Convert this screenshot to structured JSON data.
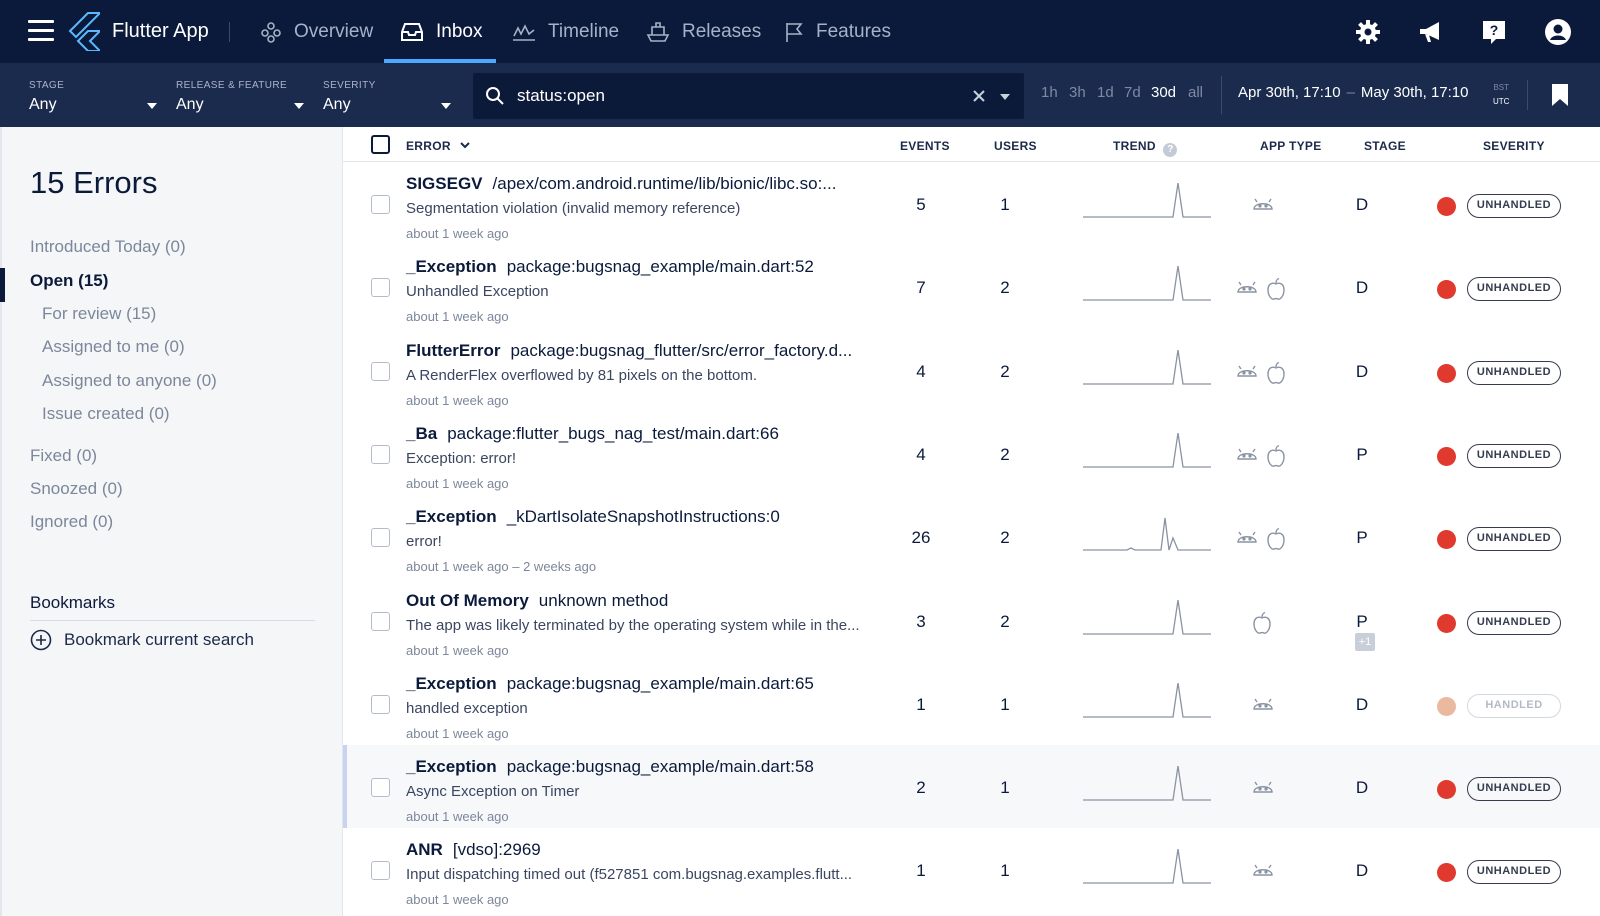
{
  "app": {
    "name": "Flutter App"
  },
  "nav": {
    "tabs": [
      {
        "label": "Overview",
        "icon": "overview-icon"
      },
      {
        "label": "Inbox",
        "icon": "inbox-icon"
      },
      {
        "label": "Timeline",
        "icon": "timeline-icon"
      },
      {
        "label": "Releases",
        "icon": "releases-icon"
      },
      {
        "label": "Features",
        "icon": "flag-icon"
      }
    ],
    "active": "Inbox"
  },
  "filters": {
    "stage": {
      "label": "STAGE",
      "value": "Any"
    },
    "release": {
      "label": "RELEASE & FEATURE",
      "value": "Any"
    },
    "severity": {
      "label": "SEVERITY",
      "value": "Any"
    },
    "search": {
      "value": "status:open"
    },
    "ranges": [
      "1h",
      "3h",
      "1d",
      "7d",
      "30d",
      "all"
    ],
    "active_range": "30d",
    "date_from": "Apr 30th, 17:10",
    "date_sep": "–",
    "date_to": "May 30th, 17:10",
    "tz_top": "BST",
    "tz_bottom": "UTC"
  },
  "sidebar": {
    "title": "15 Errors",
    "items": [
      {
        "label": "Introduced Today (0)"
      },
      {
        "label": "Open (15)"
      },
      {
        "label": "For review (15)"
      },
      {
        "label": "Assigned to me (0)"
      },
      {
        "label": "Assigned to anyone (0)"
      },
      {
        "label": "Issue created (0)"
      },
      {
        "label": "Fixed (0)"
      },
      {
        "label": "Snoozed (0)"
      },
      {
        "label": "Ignored (0)"
      }
    ],
    "bookmarks_title": "Bookmarks",
    "bookmark_button": "Bookmark current search"
  },
  "table": {
    "headers": {
      "error": "ERROR",
      "events": "EVENTS",
      "users": "USERS",
      "trend": "TREND",
      "app_type": "APP TYPE",
      "stage": "STAGE",
      "severity": "SEVERITY"
    },
    "rows": [
      {
        "class": "SIGSEGV",
        "loc": "/apex/com.android.runtime/lib/bionic/libc.so:...",
        "msg": "Segmentation violation (invalid memory reference)",
        "time": "about 1 week ago",
        "events": "5",
        "users": "1",
        "apps": [
          "android"
        ],
        "stage": "D",
        "stage_extra": "",
        "severity": "UNHANDLED"
      },
      {
        "class": "_Exception",
        "loc": "package:bugsnag_example/main.dart:52",
        "msg": "Unhandled Exception",
        "time": "about 1 week ago",
        "events": "7",
        "users": "2",
        "apps": [
          "android",
          "apple"
        ],
        "stage": "D",
        "stage_extra": "",
        "severity": "UNHANDLED"
      },
      {
        "class": "FlutterError",
        "loc": "package:bugsnag_flutter/src/error_factory.d...",
        "msg": "A RenderFlex overflowed by 81 pixels on the bottom.",
        "time": "about 1 week ago",
        "events": "4",
        "users": "2",
        "apps": [
          "android",
          "apple"
        ],
        "stage": "D",
        "stage_extra": "",
        "severity": "UNHANDLED"
      },
      {
        "class": "_Ba",
        "loc": "package:flutter_bugs_nag_test/main.dart:66",
        "msg": "Exception: error!",
        "time": "about 1 week ago",
        "events": "4",
        "users": "2",
        "apps": [
          "android",
          "apple"
        ],
        "stage": "P",
        "stage_extra": "",
        "severity": "UNHANDLED"
      },
      {
        "class": "_Exception",
        "loc": "_kDartIsolateSnapshotInstructions:0",
        "msg": "error!",
        "time": "about 1 week ago – 2 weeks ago",
        "events": "26",
        "users": "2",
        "apps": [
          "android",
          "apple"
        ],
        "stage": "P",
        "stage_extra": "",
        "severity": "UNHANDLED"
      },
      {
        "class": "Out Of Memory",
        "loc": "unknown method",
        "msg": "The app was likely terminated by the operating system while in the...",
        "time": "about 1 week ago",
        "events": "3",
        "users": "2",
        "apps": [
          "apple"
        ],
        "stage": "P",
        "stage_extra": "+1",
        "severity": "UNHANDLED"
      },
      {
        "class": "_Exception",
        "loc": "package:bugsnag_example/main.dart:65",
        "msg": "handled exception",
        "time": "about 1 week ago",
        "events": "1",
        "users": "1",
        "apps": [
          "android"
        ],
        "stage": "D",
        "stage_extra": "",
        "severity": "HANDLED"
      },
      {
        "class": "_Exception",
        "loc": "package:bugsnag_example/main.dart:58",
        "msg": "Async Exception on Timer",
        "time": "about 1 week ago",
        "events": "2",
        "users": "1",
        "apps": [
          "android"
        ],
        "stage": "D",
        "stage_extra": "",
        "severity": "UNHANDLED"
      },
      {
        "class": "ANR",
        "loc": "[vdso]:2969",
        "msg": "Input dispatching timed out (f527851 com.bugsnag.examples.flutt...",
        "time": "about 1 week ago",
        "events": "1",
        "users": "1",
        "apps": [
          "android"
        ],
        "stage": "D",
        "stage_extra": "",
        "severity": "UNHANDLED"
      }
    ]
  },
  "colors": {
    "nav_bg": "#0b1a3b",
    "filter_bg": "#1b2b4d",
    "accent": "#4aa8ff",
    "unhandled": "#e03a2f",
    "handled": "#ebb8a0"
  }
}
